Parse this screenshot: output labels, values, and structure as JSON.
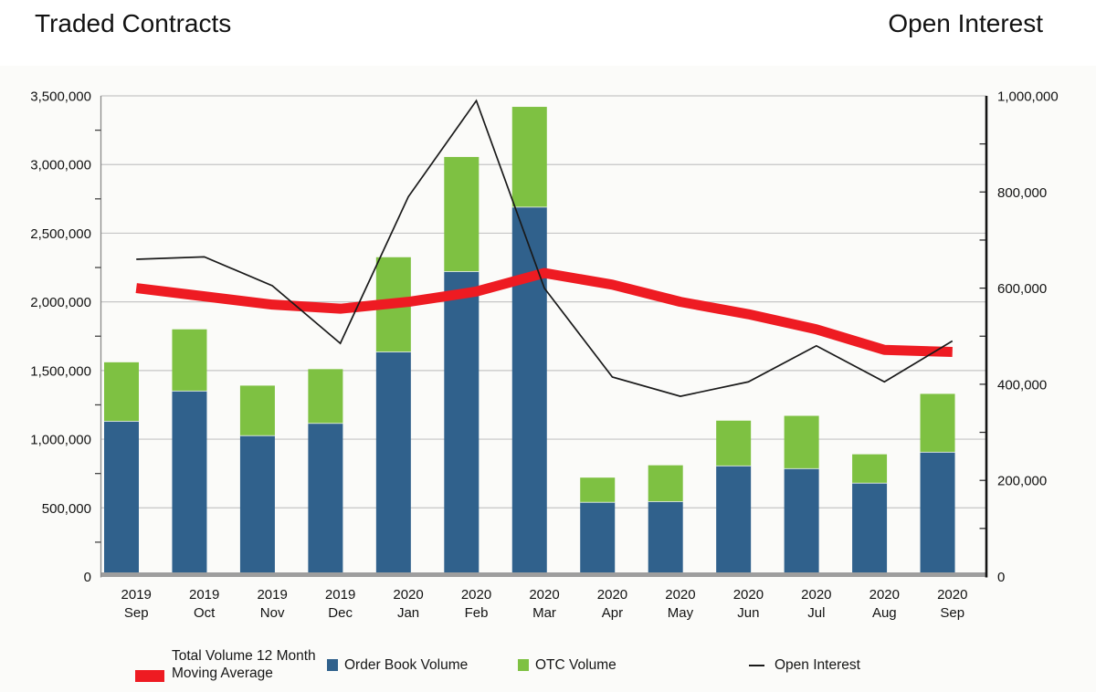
{
  "titles": {
    "left": "Traded Contracts",
    "right": "Open Interest"
  },
  "colors": {
    "order_book": "#30618c",
    "otc": "#7ec142",
    "moving_average": "#ee1b22",
    "open_interest": "#1a1a1a",
    "gridline": "#c6c6c6",
    "left_axis_line": "#8a8a8a",
    "right_axis_line": "#141414",
    "baseline_band": "#9e9e9e",
    "panel_bg": "#fbfbf9"
  },
  "chart_data": {
    "type": "bar",
    "subtype": "stacked-bars-with-overlay-lines",
    "grid": "horizontal-major",
    "legend_position": "bottom",
    "categories": [
      {
        "year": "2019",
        "month": "Sep"
      },
      {
        "year": "2019",
        "month": "Oct"
      },
      {
        "year": "2019",
        "month": "Nov"
      },
      {
        "year": "2019",
        "month": "Dec"
      },
      {
        "year": "2020",
        "month": "Jan"
      },
      {
        "year": "2020",
        "month": "Feb"
      },
      {
        "year": "2020",
        "month": "Mar"
      },
      {
        "year": "2020",
        "month": "Apr"
      },
      {
        "year": "2020",
        "month": "May"
      },
      {
        "year": "2020",
        "month": "Jun"
      },
      {
        "year": "2020",
        "month": "Jul"
      },
      {
        "year": "2020",
        "month": "Aug"
      },
      {
        "year": "2020",
        "month": "Sep"
      }
    ],
    "series": [
      {
        "name": "Order Book Volume",
        "type": "bar",
        "stack": "volume",
        "axis": "left",
        "values": [
          1130000,
          1350000,
          1025000,
          1115000,
          1635000,
          2220000,
          2690000,
          540000,
          545000,
          805000,
          785000,
          680000,
          905000
        ]
      },
      {
        "name": "OTC Volume",
        "type": "bar",
        "stack": "volume",
        "axis": "left",
        "values": [
          430000,
          450000,
          365000,
          395000,
          690000,
          835000,
          730000,
          180000,
          265000,
          330000,
          385000,
          210000,
          425000
        ]
      },
      {
        "name": "Total Volume 12 Month Moving Average",
        "type": "line",
        "axis": "left",
        "values": [
          2100000,
          2040000,
          1980000,
          1950000,
          2000000,
          2075000,
          2210000,
          2125000,
          2000000,
          1910000,
          1800000,
          1650000,
          1635000
        ]
      },
      {
        "name": "Open Interest",
        "type": "line",
        "axis": "right",
        "values": [
          660000,
          665000,
          605000,
          485000,
          790000,
          990000,
          600000,
          415000,
          375000,
          405000,
          480000,
          405000,
          490000
        ]
      }
    ],
    "left_axis": {
      "min": 0,
      "max": 3500000,
      "major_step": 500000,
      "minor_step": 250000,
      "tick_labels": [
        "0",
        "500,000",
        "1,000,000",
        "1,500,000",
        "2,000,000",
        "2,500,000",
        "3,000,000",
        "3,500,000"
      ]
    },
    "right_axis": {
      "min": 0,
      "max": 1000000,
      "major_step": 200000,
      "minor_step": 100000,
      "tick_labels": [
        "0",
        "200,000",
        "400,000",
        "600,000",
        "800,000",
        "1,000,000"
      ]
    }
  },
  "legend": {
    "moving_average": "Total Volume 12 Month Moving Average",
    "order_book": "Order Book Volume",
    "otc": "OTC Volume",
    "open_interest": "Open Interest"
  }
}
